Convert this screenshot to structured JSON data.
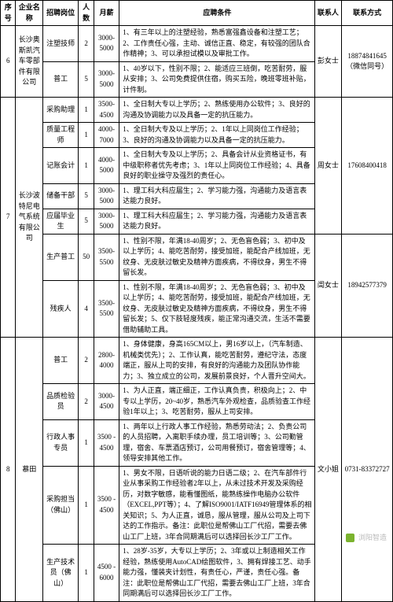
{
  "headers": {
    "seq": "序号",
    "company": "企业名称",
    "position": "招聘岗位",
    "count": "人数",
    "salary": "月薪",
    "requirements": "应聘条件",
    "contact": "联系人",
    "phone": "联系方式"
  },
  "rows": [
    {
      "seq": "6",
      "company": "长沙奥斯凯汽车零部件有限公司",
      "contact": "彭女士",
      "phone": "18874841645（微信同号）",
      "positions": [
        {
          "name": "注塑技师",
          "count": "2",
          "salary": "3000-5000",
          "req": "1、有三年以上的注塑经验，熟悉富强鑫设备和注塑工艺；2、工作责任心强，主动、诚信正直、稳定，有较强的团队合作精神；3、可以承担试模以及审批工作。"
        },
        {
          "name": "普工",
          "count": "5",
          "salary": "3000-5000",
          "req": "1、40岁以下，性别不限；2、能适应三班倒，吃苦耐劳，服从安排；3、公司免费提供住宿，购买五险，晚班零班补贴，计件制。"
        }
      ]
    },
    {
      "seq": "7",
      "company": "长沙波特尼电气系统有限公司",
      "subrows": [
        {
          "contact": "周女士",
          "phone": "17608400418",
          "positions": [
            {
              "name": "采购助理",
              "count": "1",
              "salary": "3500-4500",
              "req": "1、全日制大专以上学历；2、熟练使用办公软件；3、良好的沟通及协调能力以及具备一定的抗压能力。"
            },
            {
              "name": "质量工程师",
              "count": "1",
              "salary": "4000-7000",
              "req": "1、全日制大专及以上学历；2、1年以上同岗位工作经验；3、良好的沟通及协调能力以及具备一定的抗压能力。"
            },
            {
              "name": "记账会计",
              "count": "1",
              "salary": "4000-5000",
              "req": "1、全日制大专及以上学历；2、具备会计从业资格证书，有中级职称者优先考虑；3、1年以上同岗位工作经验；4、具备良好的职业操守及强烈的责任心。"
            },
            {
              "name": "储备干部",
              "count": "5",
              "salary": "3000-5000",
              "req": "1、理工科大科应届生；2、学习能力强，沟通能力及语言表达能力良好。"
            },
            {
              "name": "应届毕业生",
              "count": "5",
              "salary": "3000-5000",
              "req": "1、理工科大科应届生；2、学习能力强，沟通能力及语言表达能力良好。"
            }
          ]
        },
        {
          "contact": "訚女士",
          "phone": "18942577379",
          "positions": [
            {
              "name": "生产普工",
              "count": "50",
              "salary": "3500-5500",
              "req": "1、性别不限，年满18-40周岁；2、无色盲色弱；3、初中及以上学历；4、能吃苦耐劳，接受加班，能配合产线加班，无纹身、无皮肤过敏史及精神方面疾病，不得纹身，男生不得留长发。"
            },
            {
              "name": "残疾人",
              "count": "4",
              "salary": "3500-5500",
              "req": "1、性别不限，年满18-40周岁；2、无色盲色弱；3、初中及以上学历；4、能吃苦耐劳，接受加班，能配合产线加班，无纹身、无皮肤过敏史及精神方面疾病，不得纹身，男生不得留长发；5、仅下肢轻度残疾，能正常沟通交流，生活不需要借助辅助工具。"
            }
          ]
        }
      ]
    },
    {
      "seq": "8",
      "company": "慕田",
      "contact": "文小姐",
      "phone": "0731-83372727",
      "positions": [
        {
          "name": "普工",
          "count": "2",
          "salary": "2800-4000",
          "req": "1、身体健康，身高165CM以上，男16岁以上，（汽车制造、机械类优先）；2、工作认真，能吃苦耐劳，遵纪守法，态度端正，服从上司的安排，有良好的沟通能力及团队协作能力；3、独立成立的公司，发展前景良好，个人晋升空间大。"
        },
        {
          "name": "品质检验员",
          "count": "2",
          "salary": "3000-4500",
          "req": "1、为人正直，端正细正，工作认真负责，积极向上；2、中专以上学历，20~40岁，熟悉汽车外观检查，品质验查工作经验1年以上；3、吃苦耐劳，服从上司安排。"
        },
        {
          "name": "行政人事专员",
          "count": "1",
          "salary": "3500 - 4500",
          "req": "1、两年以上行政人事工作经验，熟悉劳动法；2、负责公司的人员招聘，入离职手续办理，员工培训等；3、公司勤管理，宿舍、车票酒店预订，公司用餐预订，宿舍管理等；4、领导安排其他工作。"
        },
        {
          "name": "采购担当（佛山）",
          "count": "1",
          "salary": "3500 - 4500",
          "req": "1、男女不限，日语听说的能力日语二级；2、在汽车部件行业从事采购工作经验者2年以上，从未过技术开发及采购经历，对数字敏感，能看懂图纸，能熟练操作电脑办公软件（EXCEL,PPT等）；4、了解ISO9001/IATF16949管理体系的相关知识；5、为人正直，诚恳，服从管理，服从公司及上司下达的工作指示。备注：此职位是帮佛山工厂代招，需要去佛山工厂上班，3年合同期满后可以选择回长沙工厂工作。"
        },
        {
          "name": "生产技术员（佛山）",
          "count": "1",
          "salary": "4500 - 6000",
          "req": "1、28岁-35岁，大专以上学历；2、3年或以上制造相关工作经验，熟练使用AutoCAD绘图软件，3、拥有焊接工艺、动手能力强，懂装夹计划性，有责任心，严谨，责任心强。备注：此职位是帮佛山工厂代招，需要去佛山工厂上班，3年合同期满后可以选择回长沙工厂工作。"
        }
      ]
    }
  ],
  "watermark": "浏阳智造"
}
